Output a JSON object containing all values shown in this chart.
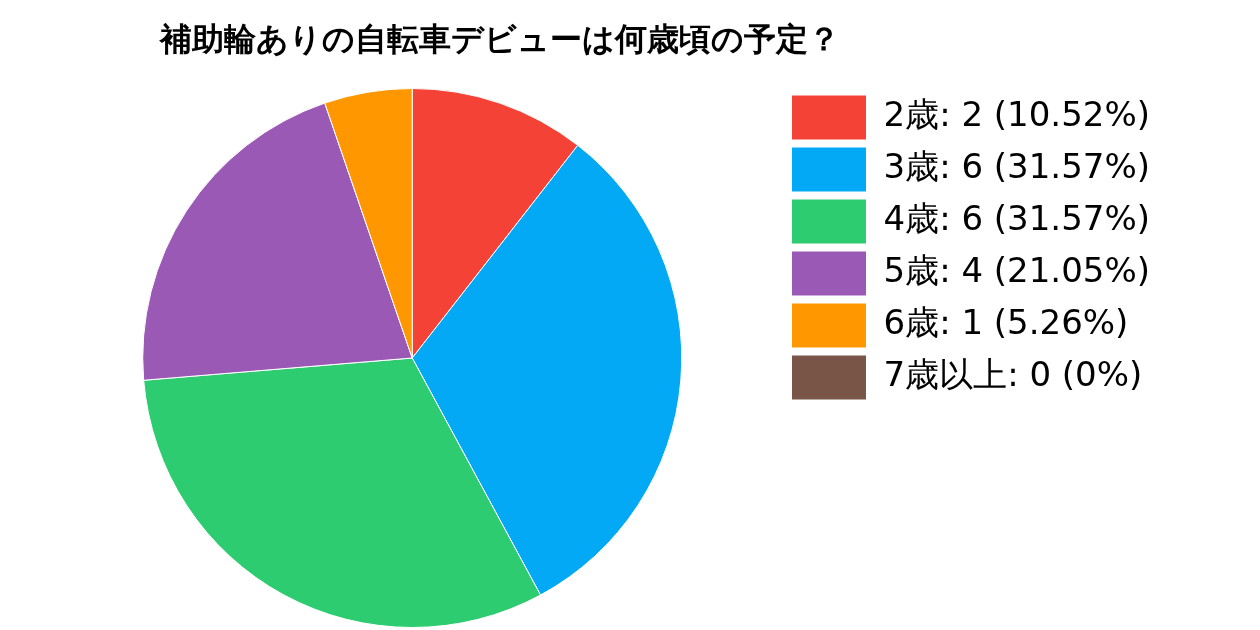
{
  "chart_data": {
    "type": "pie",
    "title": "補助輪ありの自転車デビューは何歳頃の予定？",
    "categories": [
      "2歳: 2 (10.52%)",
      "3歳: 6 (31.57%)",
      "4歳: 6 (31.57%)",
      "5歳: 4 (21.05%)",
      "6歳: 1 (5.26%)",
      "7歳以上: 0 (0%)"
    ],
    "values": [
      2,
      6,
      6,
      4,
      1,
      0
    ],
    "colors": [
      "#f44336",
      "#03a9f4",
      "#2ecc71",
      "#9b59b6",
      "#ff9800",
      "#795548"
    ],
    "legend": "right"
  }
}
